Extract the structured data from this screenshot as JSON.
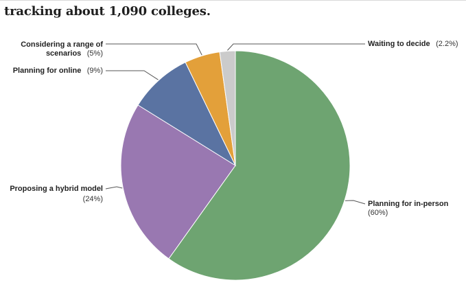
{
  "header": {
    "subtitle": "tracking about 1,090 colleges."
  },
  "chart_data": {
    "type": "pie",
    "slices": [
      {
        "label": "Planning for in-person",
        "pct_label": "(60%)",
        "value": 60,
        "color": "#6ea471"
      },
      {
        "label": "Proposing a hybrid model",
        "pct_label": "(24%)",
        "value": 24,
        "color": "#9978b1"
      },
      {
        "label": "Planning for online",
        "pct_label": "(9%)",
        "value": 9,
        "color": "#5a73a2"
      },
      {
        "label": "Considering a range of scenarios",
        "pct_label": "(5%)",
        "value": 5,
        "color": "#e3a03a"
      },
      {
        "label": "Waiting to decide",
        "pct_label": "(2.2%)",
        "value": 2.2,
        "color": "#cbcbcb"
      }
    ]
  }
}
